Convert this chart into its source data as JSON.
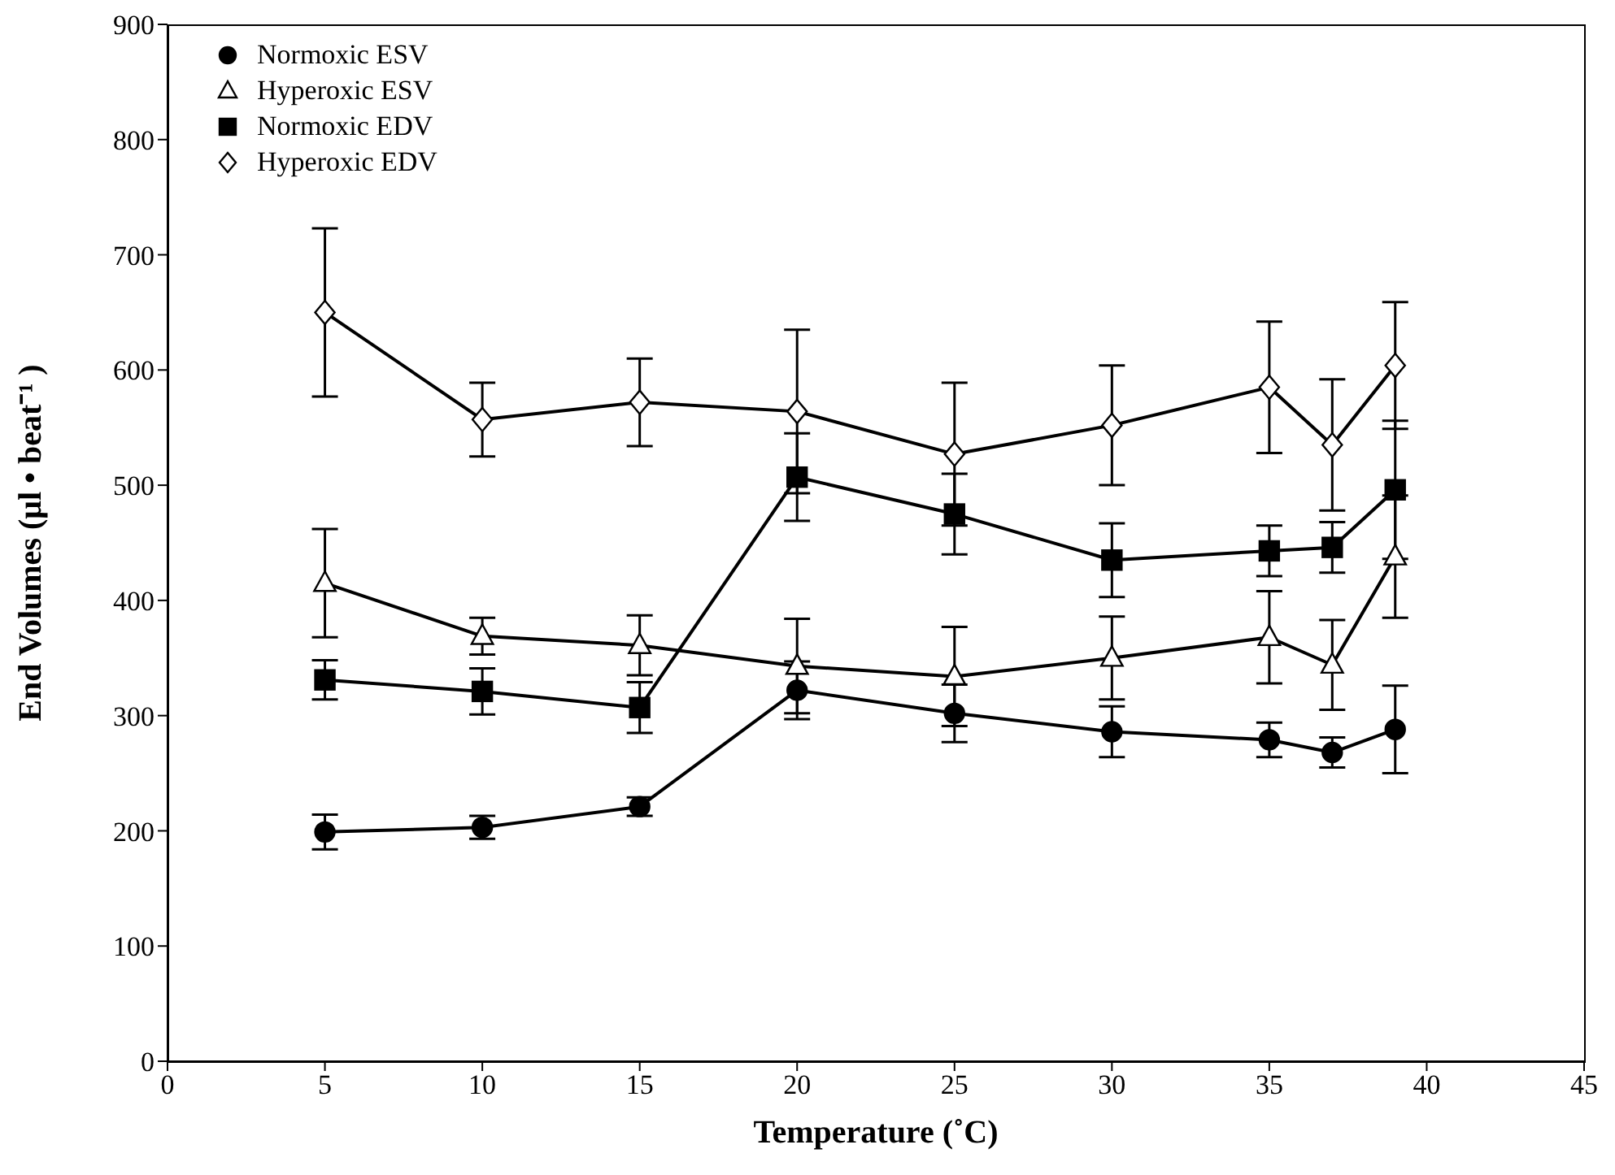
{
  "chart_data": {
    "type": "line",
    "xlabel": "Temperature (˚C)",
    "ylabel": "End Volumes (μl • beat⁻¹ )",
    "x": [
      5,
      10,
      15,
      20,
      25,
      30,
      35,
      37,
      39
    ],
    "series": [
      {
        "name": "Normoxic ESV",
        "color": "#000000",
        "marker": "circle",
        "values": [
          199,
          203,
          221,
          322,
          302,
          286,
          279,
          268,
          288
        ],
        "errors": [
          15,
          10,
          8,
          25,
          25,
          22,
          15,
          13,
          38
        ]
      },
      {
        "name": "Hyperoxic ESV",
        "color": "#000000",
        "marker": "triangle",
        "values": [
          415,
          369,
          361,
          343,
          334,
          350,
          368,
          344,
          438
        ],
        "errors": [
          47,
          16,
          26,
          41,
          43,
          36,
          40,
          39,
          53
        ]
      },
      {
        "name": "Normoxic EDV",
        "color": "#000000",
        "marker": "square",
        "values": [
          331,
          321,
          307,
          507,
          475,
          435,
          443,
          446,
          496
        ],
        "errors": [
          17,
          20,
          22,
          38,
          35,
          32,
          22,
          22,
          60
        ]
      },
      {
        "name": "Hyperoxic EDV",
        "color": "#000000",
        "marker": "diamond",
        "values": [
          650,
          557,
          572,
          564,
          527,
          552,
          585,
          535,
          604
        ],
        "errors": [
          73,
          32,
          38,
          71,
          62,
          52,
          57,
          57,
          55
        ]
      }
    ],
    "xlim": [
      0,
      45
    ],
    "xticks": [
      0,
      5,
      10,
      15,
      20,
      25,
      30,
      35,
      40,
      45
    ],
    "ylim": [
      0,
      900
    ],
    "yticks": [
      0,
      100,
      200,
      300,
      400,
      500,
      600,
      700,
      800,
      900
    ],
    "grid": false,
    "legend": "top left",
    "line_style": "solid"
  }
}
